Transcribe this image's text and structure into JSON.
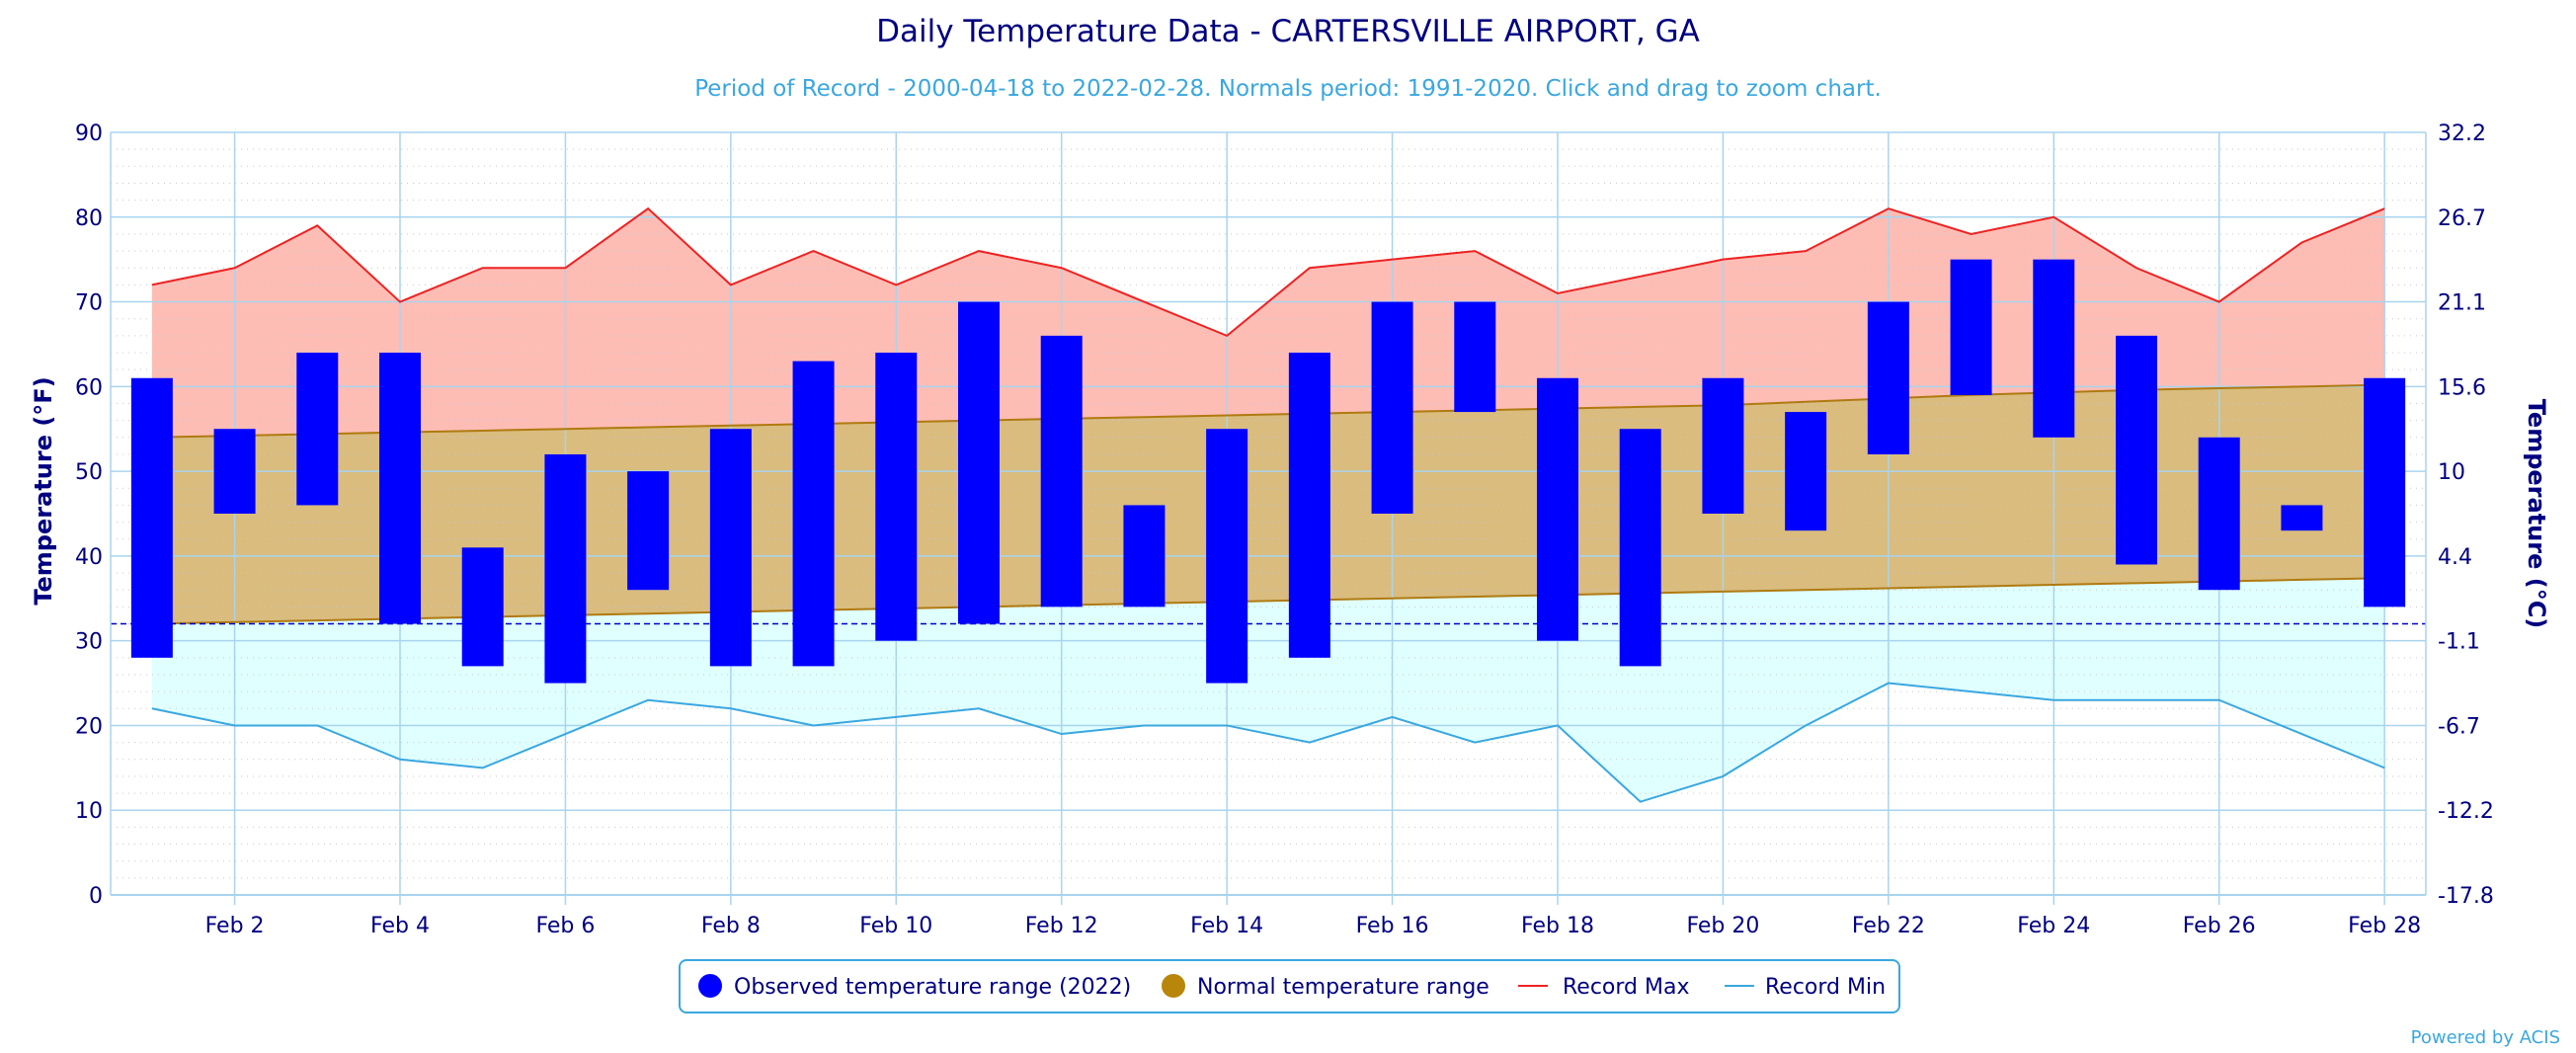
{
  "colors": {
    "observed": "#0000ff",
    "normal_fill": "#d9bc7e",
    "normal_line": "#b07a10",
    "record_max_line": "#ee2222",
    "record_max_fill": "#fdbdb5",
    "record_min_line": "#3aa7e0",
    "record_min_fill": "#e0ffff",
    "freezing_line": "#0000cc",
    "grid": "#a9d4ee",
    "text": "#000080",
    "subtitle": "#3aa7e0",
    "legend_normal_marker": "#b8860b"
  },
  "chart_data": {
    "type": "bar",
    "title": "Daily Temperature Data - CARTERSVILLE AIRPORT, GA",
    "subtitle": "Period of Record - 2000-04-18 to 2022-02-28. Normals period: 1991-2020. Click and drag to zoom chart.",
    "ylabel": "Temperature (°F)",
    "ylabel_right": "Temperature (°C)",
    "ylim": [
      0,
      90
    ],
    "yticks": [
      0,
      10,
      20,
      30,
      40,
      50,
      60,
      70,
      80,
      90
    ],
    "yticks_right": [
      "-17.8",
      "-12.2",
      "-6.7",
      "-1.1",
      "4.4",
      "10",
      "15.6",
      "21.1",
      "26.7",
      "32.2"
    ],
    "x_tick_labels": [
      "Feb 2",
      "Feb 4",
      "Feb 6",
      "Feb 8",
      "Feb 10",
      "Feb 12",
      "Feb 14",
      "Feb 16",
      "Feb 18",
      "Feb 20",
      "Feb 22",
      "Feb 24",
      "Feb 26",
      "Feb 28"
    ],
    "x_tick_days": [
      2,
      4,
      6,
      8,
      10,
      12,
      14,
      16,
      18,
      20,
      22,
      24,
      26,
      28
    ],
    "days": [
      1,
      2,
      3,
      4,
      5,
      6,
      7,
      8,
      9,
      10,
      11,
      12,
      13,
      14,
      15,
      16,
      17,
      18,
      19,
      20,
      21,
      22,
      23,
      24,
      25,
      26,
      27,
      28
    ],
    "freezing_line": 32,
    "grid": true,
    "legend_position": "bottom-center",
    "series": [
      {
        "name": "Observed temperature range (2022)",
        "type": "range-bar",
        "low": [
          28,
          45,
          46,
          32,
          27,
          25,
          36,
          27,
          27,
          30,
          32,
          34,
          34,
          25,
          28,
          45,
          57,
          30,
          27,
          45,
          43,
          52,
          59,
          54,
          39,
          36,
          43,
          34
        ],
        "high": [
          61,
          55,
          64,
          64,
          41,
          52,
          50,
          55,
          63,
          64,
          70,
          66,
          46,
          55,
          64,
          70,
          70,
          61,
          55,
          61,
          57,
          70,
          75,
          75,
          66,
          54,
          46,
          61
        ]
      },
      {
        "name": "Normal temperature range",
        "type": "range-area",
        "low": [
          32,
          32.2,
          32.4,
          32.6,
          32.8,
          33,
          33.2,
          33.4,
          33.6,
          33.8,
          34,
          34.2,
          34.4,
          34.6,
          34.8,
          35,
          35.2,
          35.4,
          35.6,
          35.8,
          36,
          36.2,
          36.4,
          36.6,
          36.8,
          37,
          37.2,
          37.4
        ],
        "high": [
          54,
          54.2,
          54.4,
          54.6,
          54.8,
          55,
          55.2,
          55.4,
          55.6,
          55.8,
          56,
          56.2,
          56.4,
          56.6,
          56.8,
          57,
          57.2,
          57.4,
          57.6,
          57.8,
          58.2,
          58.6,
          59,
          59.3,
          59.6,
          59.8,
          60,
          60.2
        ]
      },
      {
        "name": "Record Max",
        "type": "line",
        "values": [
          72,
          74,
          79,
          70,
          74,
          74,
          81,
          72,
          76,
          72,
          76,
          74,
          70,
          66,
          74,
          75,
          76,
          71,
          73,
          75,
          76,
          81,
          78,
          80,
          74,
          70,
          77,
          81
        ]
      },
      {
        "name": "Record Min",
        "type": "line",
        "values": [
          22,
          20,
          20,
          16,
          15,
          19,
          23,
          22,
          20,
          21,
          22,
          19,
          20,
          20,
          18,
          21,
          18,
          20,
          11,
          14,
          20,
          25,
          24,
          23,
          23,
          23,
          19,
          15
        ]
      }
    ]
  },
  "credit": "Powered by ACIS"
}
